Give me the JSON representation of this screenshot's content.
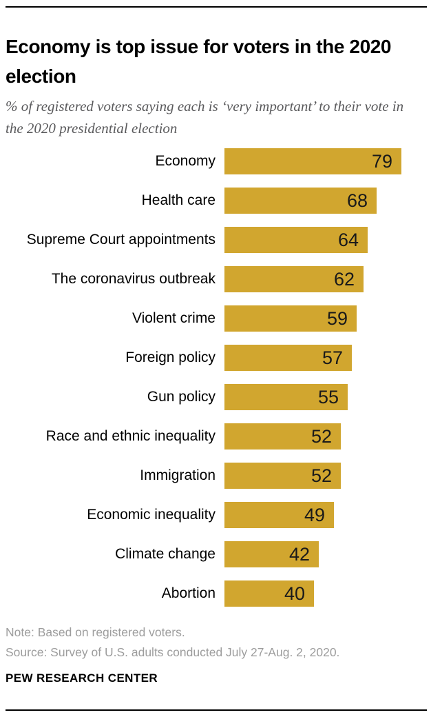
{
  "header": {
    "title": "Economy is top issue for voters in the 2020 election",
    "subtitle": "% of registered voters saying each is ‘very important’ to their vote in the 2020 presidential election"
  },
  "chart_data": {
    "type": "bar",
    "orientation": "horizontal",
    "categories": [
      "Economy",
      "Health care",
      "Supreme Court appointments",
      "The coronavirus outbreak",
      "Violent crime",
      "Foreign policy",
      "Gun policy",
      "Race and ethnic inequality",
      "Immigration",
      "Economic inequality",
      "Climate change",
      "Abortion"
    ],
    "values": [
      79,
      68,
      64,
      62,
      59,
      57,
      55,
      52,
      52,
      49,
      42,
      40
    ],
    "value_axis_range": [
      0,
      79
    ],
    "grid": false,
    "legend": false,
    "value_labels_inside_bars": true,
    "title": "Economy is top issue for voters in the 2020 election",
    "subtitle": "% of registered voters saying each is ‘very important’ to their vote in the 2020 presidential election"
  },
  "colors": {
    "bar": "#d1a62f",
    "value_text": "#1a1a1a",
    "subtitle_text": "#5a5a5c",
    "note_text": "#9d9d9d",
    "rule": "#000000"
  },
  "footer": {
    "note": "Note: Based on registered voters.",
    "source": "Source: Survey of U.S. adults conducted July 27-Aug. 2, 2020.",
    "brand": "PEW RESEARCH CENTER"
  }
}
